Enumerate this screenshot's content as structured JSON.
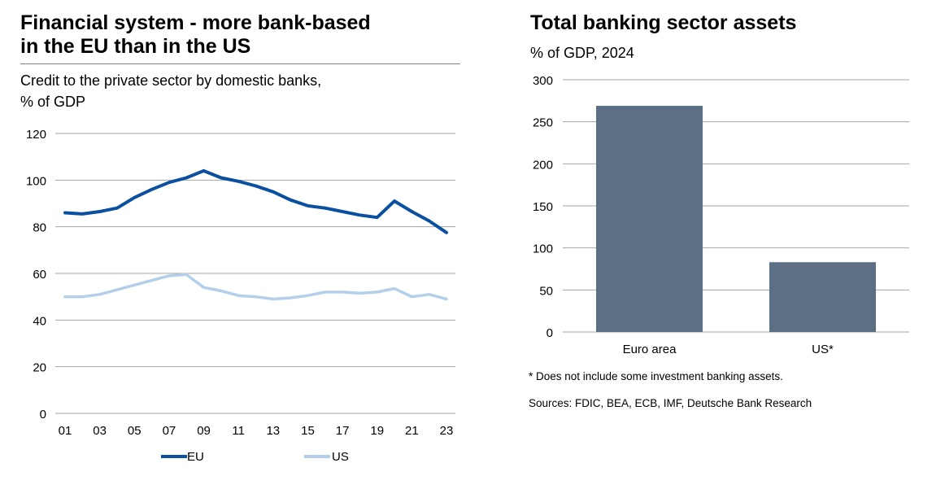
{
  "left": {
    "title_line1": "Financial system - more bank-based",
    "title_line2": "in the EU than in the US",
    "subtitle_line1": "Credit to the private sector by domestic banks,",
    "subtitle_line2": "% of GDP"
  },
  "right": {
    "title": "Total banking sector assets",
    "subtitle": "% of GDP, 2024",
    "footnote": "* Does not include some investment banking assets.",
    "sources": "Sources: FDIC, BEA, ECB, IMF, Deutsche Bank Research"
  },
  "colors": {
    "eu": "#0a4fa0",
    "us": "#b4cfe9",
    "bar": "#5d6f84",
    "grid": "#a6a6a6"
  },
  "chart_data": [
    {
      "type": "line",
      "x": [
        2001,
        2002,
        2003,
        2004,
        2005,
        2006,
        2007,
        2008,
        2009,
        2010,
        2011,
        2012,
        2013,
        2014,
        2015,
        2016,
        2017,
        2018,
        2019,
        2020,
        2021,
        2022,
        2023
      ],
      "xticks": [
        "01",
        "03",
        "05",
        "07",
        "09",
        "11",
        "13",
        "15",
        "17",
        "19",
        "21",
        "23"
      ],
      "yticks": [
        "0",
        "20",
        "40",
        "60",
        "80",
        "100",
        "120"
      ],
      "ylim": [
        0,
        120
      ],
      "grid": true,
      "legend_position": "bottom",
      "series": [
        {
          "name": "EU",
          "color": "#0a4fa0",
          "values": [
            86,
            85.5,
            86.5,
            88,
            92.5,
            96,
            99,
            101,
            104,
            101,
            99.5,
            97.5,
            95,
            91.5,
            89,
            88,
            86.5,
            85,
            84,
            91,
            86.5,
            82.5,
            77.5
          ]
        },
        {
          "name": "US",
          "color": "#b4cfe9",
          "values": [
            50,
            50,
            51,
            53,
            55,
            57,
            59,
            59.5,
            54,
            52.5,
            50.5,
            50,
            49,
            49.5,
            50.5,
            52,
            52,
            51.5,
            52,
            53.5,
            50,
            51,
            49
          ]
        }
      ]
    },
    {
      "type": "bar",
      "categories": [
        "Euro area",
        "US*"
      ],
      "values": [
        269,
        83
      ],
      "yticks": [
        "0",
        "50",
        "100",
        "150",
        "200",
        "250",
        "300"
      ],
      "ylim": [
        0,
        300
      ],
      "grid": true
    }
  ]
}
